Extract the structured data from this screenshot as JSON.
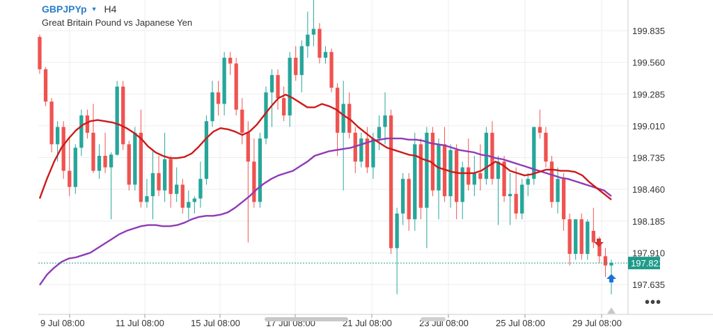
{
  "header": {
    "symbol": "GBPJPYp",
    "timeframe": "H4",
    "description": "Great Britain Pound vs Japanese Yen"
  },
  "chart_data": {
    "type": "candlestick",
    "ylim": [
      197.4,
      200.2
    ],
    "y_ticks": [
      "199.835",
      "199.560",
      "199.285",
      "199.010",
      "198.735",
      "198.460",
      "198.185",
      "197.910",
      "197.635"
    ],
    "x_ticks": [
      "9 Jul 08:00",
      "11 Jul 08:00",
      "15 Jul 08:00",
      "17 Jul 08:00",
      "21 Jul 08:00",
      "23 Jul 08:00",
      "25 Jul 08:00",
      "29 Jul 08:00"
    ],
    "current_price": "197.821",
    "colors": {
      "bull": "#26a69a",
      "bear": "#ef5350",
      "ma_fast": "#cc1a1a",
      "ma_slow": "#8e3bb5",
      "current": "#1e9b8a"
    },
    "candles": [
      [
        199.78,
        199.8,
        199.46,
        199.5
      ],
      [
        199.5,
        199.52,
        199.18,
        199.22
      ],
      [
        199.22,
        199.25,
        198.78,
        198.85
      ],
      [
        198.85,
        199.05,
        198.7,
        199.0
      ],
      [
        199.0,
        199.05,
        198.55,
        198.62
      ],
      [
        198.62,
        198.9,
        198.4,
        198.48
      ],
      [
        198.48,
        198.85,
        198.42,
        198.82
      ],
      [
        198.82,
        199.15,
        198.75,
        199.1
      ],
      [
        199.1,
        199.15,
        198.9,
        198.95
      ],
      [
        198.95,
        199.2,
        198.6,
        198.62
      ],
      [
        198.62,
        198.85,
        198.55,
        198.75
      ],
      [
        198.75,
        198.95,
        198.6,
        198.65
      ],
      [
        198.65,
        198.78,
        198.2,
        198.76
      ],
      [
        198.76,
        199.4,
        198.75,
        199.35
      ],
      [
        199.35,
        199.4,
        198.8,
        198.85
      ],
      [
        198.85,
        198.88,
        198.45,
        198.5
      ],
      [
        198.5,
        199.0,
        198.45,
        198.95
      ],
      [
        198.95,
        199.15,
        198.3,
        198.35
      ],
      [
        198.35,
        198.55,
        198.3,
        198.4
      ],
      [
        198.4,
        198.8,
        198.2,
        198.6
      ],
      [
        198.6,
        198.75,
        198.4,
        198.45
      ],
      [
        198.45,
        198.95,
        198.35,
        198.72
      ],
      [
        198.72,
        198.75,
        198.3,
        198.42
      ],
      [
        198.42,
        198.65,
        198.35,
        198.5
      ],
      [
        198.5,
        198.55,
        198.25,
        198.3
      ],
      [
        198.3,
        198.45,
        198.2,
        198.35
      ],
      [
        198.35,
        198.4,
        198.25,
        198.38
      ],
      [
        198.38,
        198.7,
        198.3,
        198.55
      ],
      [
        198.55,
        199.1,
        198.5,
        199.05
      ],
      [
        199.05,
        199.4,
        199.0,
        199.3
      ],
      [
        199.3,
        199.4,
        199.1,
        199.2
      ],
      [
        199.2,
        199.65,
        199.1,
        199.6
      ],
      [
        199.6,
        199.65,
        199.45,
        199.55
      ],
      [
        199.55,
        199.6,
        199.1,
        199.15
      ],
      [
        199.15,
        199.25,
        198.85,
        198.95
      ],
      [
        198.95,
        199.05,
        198.0,
        198.7
      ],
      [
        198.7,
        198.9,
        198.3,
        198.35
      ],
      [
        198.35,
        198.95,
        198.3,
        198.9
      ],
      [
        198.9,
        199.35,
        198.85,
        199.3
      ],
      [
        199.3,
        199.5,
        199.0,
        199.45
      ],
      [
        199.45,
        199.5,
        199.15,
        199.25
      ],
      [
        199.25,
        199.35,
        199.05,
        199.1
      ],
      [
        199.1,
        199.65,
        199.0,
        199.6
      ],
      [
        199.6,
        199.7,
        199.4,
        199.45
      ],
      [
        199.45,
        199.75,
        199.3,
        199.7
      ],
      [
        199.7,
        200.0,
        199.6,
        199.8
      ],
      [
        199.8,
        200.1,
        199.7,
        199.85
      ],
      [
        199.85,
        199.9,
        199.55,
        199.6
      ],
      [
        199.6,
        199.7,
        199.55,
        199.65
      ],
      [
        199.65,
        199.68,
        199.3,
        199.34
      ],
      [
        199.34,
        199.38,
        198.75,
        198.95
      ],
      [
        198.95,
        199.4,
        198.45,
        199.2
      ],
      [
        199.2,
        199.3,
        198.9,
        198.95
      ],
      [
        198.95,
        199.0,
        198.6,
        198.7
      ],
      [
        198.7,
        198.95,
        198.65,
        198.9
      ],
      [
        198.9,
        199.0,
        198.6,
        198.65
      ],
      [
        198.65,
        198.95,
        198.55,
        198.9
      ],
      [
        198.9,
        199.1,
        198.8,
        199.0
      ],
      [
        199.0,
        199.3,
        198.85,
        199.1
      ],
      [
        199.1,
        199.15,
        197.9,
        197.95
      ],
      [
        197.95,
        198.3,
        197.55,
        198.25
      ],
      [
        198.25,
        198.6,
        198.15,
        198.55
      ],
      [
        198.55,
        198.6,
        198.1,
        198.2
      ],
      [
        198.2,
        198.95,
        198.1,
        198.85
      ],
      [
        198.85,
        198.9,
        198.2,
        198.3
      ],
      [
        198.3,
        199.0,
        197.95,
        198.95
      ],
      [
        198.95,
        199.0,
        198.4,
        198.45
      ],
      [
        198.45,
        198.9,
        198.2,
        198.85
      ],
      [
        198.85,
        199.0,
        198.35,
        198.4
      ],
      [
        198.4,
        198.85,
        198.3,
        198.8
      ],
      [
        198.8,
        198.85,
        198.2,
        198.35
      ],
      [
        198.35,
        198.7,
        198.2,
        198.65
      ],
      [
        198.65,
        198.9,
        198.45,
        198.5
      ],
      [
        198.5,
        198.75,
        198.4,
        198.6
      ],
      [
        198.6,
        198.85,
        198.45,
        198.55
      ],
      [
        198.55,
        199.0,
        198.5,
        198.95
      ],
      [
        198.95,
        199.05,
        198.5,
        198.55
      ],
      [
        198.55,
        198.75,
        198.15,
        198.7
      ],
      [
        198.7,
        198.75,
        198.35,
        198.4
      ],
      [
        198.4,
        198.6,
        198.15,
        198.42
      ],
      [
        198.42,
        198.65,
        198.2,
        198.25
      ],
      [
        198.25,
        198.55,
        198.2,
        198.5
      ],
      [
        198.5,
        198.6,
        198.4,
        198.55
      ],
      [
        198.55,
        199.0,
        198.5,
        199.0
      ],
      [
        199.0,
        199.15,
        198.9,
        198.95
      ],
      [
        198.95,
        199.0,
        198.65,
        198.7
      ],
      [
        198.7,
        198.75,
        198.3,
        198.35
      ],
      [
        198.35,
        198.65,
        198.25,
        198.55
      ],
      [
        198.55,
        198.6,
        198.1,
        198.2
      ],
      [
        198.2,
        198.25,
        197.8,
        197.9
      ],
      [
        197.9,
        198.2,
        197.85,
        198.2
      ],
      [
        198.2,
        198.25,
        197.85,
        197.9
      ],
      [
        197.9,
        198.2,
        197.85,
        198.18
      ],
      [
        198.1,
        198.3,
        197.95,
        198.0
      ],
      [
        197.98,
        198.05,
        197.82,
        197.88
      ],
      [
        197.88,
        197.95,
        197.7,
        197.8
      ],
      [
        197.8,
        197.85,
        197.55,
        197.822
      ]
    ],
    "ma_fast": [
      198.38,
      198.55,
      198.7,
      198.82,
      198.9,
      198.97,
      199.02,
      199.05,
      199.06,
      199.05,
      199.04,
      199.02,
      198.99,
      198.95,
      198.9,
      198.83,
      198.78,
      198.75,
      198.73,
      198.73,
      198.74,
      198.77,
      198.83,
      198.9,
      198.96,
      198.99,
      198.98,
      198.96,
      198.93,
      198.96,
      199.02,
      199.1,
      199.18,
      199.25,
      199.28,
      199.25,
      199.21,
      199.17,
      199.17,
      199.2,
      199.18,
      199.15,
      199.1,
      199.06,
      199.0,
      198.95,
      198.9,
      198.86,
      198.82,
      198.8,
      198.78,
      198.76,
      198.75,
      198.72,
      198.7,
      198.65,
      198.63,
      198.61,
      198.6,
      198.6,
      198.6,
      198.62,
      198.66,
      198.7,
      198.67,
      198.62,
      198.6,
      198.58,
      198.59,
      198.61,
      198.63,
      198.63,
      198.62,
      198.62,
      198.61,
      198.58,
      198.52,
      198.47,
      198.42,
      198.37
    ],
    "ma_slow": [
      197.63,
      197.72,
      197.78,
      197.83,
      197.86,
      197.87,
      197.89,
      197.91,
      197.95,
      197.99,
      198.03,
      198.07,
      198.1,
      198.12,
      198.14,
      198.15,
      198.15,
      198.14,
      198.14,
      198.15,
      198.17,
      198.2,
      198.22,
      198.23,
      198.23,
      198.24,
      198.26,
      198.3,
      198.35,
      198.4,
      198.46,
      198.51,
      198.55,
      198.58,
      198.6,
      198.62,
      198.66,
      198.7,
      198.75,
      198.77,
      198.79,
      198.8,
      198.81,
      198.82,
      198.84,
      198.86,
      198.88,
      198.89,
      198.9,
      198.9,
      198.9,
      198.89,
      198.89,
      198.88,
      198.86,
      198.85,
      198.84,
      198.82,
      198.8,
      198.79,
      198.78,
      198.76,
      198.75,
      198.73,
      198.72,
      198.7,
      198.68,
      198.66,
      198.64,
      198.62,
      198.6,
      198.58,
      198.56,
      198.55,
      198.53,
      198.51,
      198.49,
      198.47,
      198.45,
      198.4
    ]
  }
}
